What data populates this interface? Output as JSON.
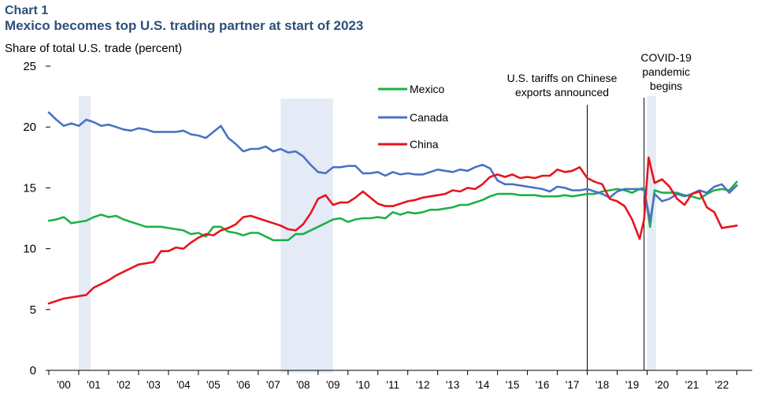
{
  "chart_data": {
    "type": "line",
    "label": "Chart 1",
    "title": "Mexico becomes top U.S. trading partner at start of 2023",
    "ylabel": "Share of total U.S. trade (percent)",
    "xlabel": "",
    "ylim": [
      0,
      25
    ],
    "xlim": [
      2000,
      2023.2
    ],
    "yticks": [
      "0",
      "5",
      "10",
      "15",
      "20",
      "25"
    ],
    "xtick_labels": [
      "'00",
      "'01",
      "'02",
      "'03",
      "'04",
      "'05",
      "'06",
      "'07",
      "'08",
      "'09",
      "'10",
      "'11",
      "'12",
      "'13",
      "'14",
      "'15",
      "'16",
      "'17",
      "'18",
      "'19",
      "'20",
      "'21",
      "'22"
    ],
    "grid": false,
    "colors": {
      "title": "#2e4f7a",
      "recession": "#e4ebf6",
      "mexico": "#1db04b",
      "canada": "#4a72c4",
      "china": "#e8141c"
    },
    "recessions": [
      [
        2001.0,
        2001.4
      ],
      [
        2007.75,
        2009.5
      ],
      [
        2020.0,
        2020.3
      ]
    ],
    "legend": [
      {
        "name": "Mexico",
        "color": "#1db04b"
      },
      {
        "name": "Canada",
        "color": "#4a72c4"
      },
      {
        "name": "China",
        "color": "#e8141c"
      }
    ],
    "annotations": [
      {
        "lines": [
          "U.S. tariffs on Chinese",
          "exports announced"
        ],
        "x": 2018.0
      },
      {
        "lines": [
          "COVID-19",
          "pandemic",
          "begins"
        ],
        "x": 2019.9
      }
    ],
    "series": [
      {
        "name": "Mexico",
        "color": "#1db04b",
        "points": [
          [
            2000.0,
            12.3
          ],
          [
            2000.25,
            12.4
          ],
          [
            2000.5,
            12.6
          ],
          [
            2000.75,
            12.1
          ],
          [
            2001.0,
            12.2
          ],
          [
            2001.25,
            12.3
          ],
          [
            2001.5,
            12.6
          ],
          [
            2001.75,
            12.8
          ],
          [
            2002.0,
            12.6
          ],
          [
            2002.25,
            12.7
          ],
          [
            2002.5,
            12.4
          ],
          [
            2002.75,
            12.2
          ],
          [
            2003.0,
            12.0
          ],
          [
            2003.25,
            11.8
          ],
          [
            2003.5,
            11.8
          ],
          [
            2003.75,
            11.8
          ],
          [
            2004.0,
            11.7
          ],
          [
            2004.25,
            11.6
          ],
          [
            2004.5,
            11.5
          ],
          [
            2004.75,
            11.2
          ],
          [
            2005.0,
            11.3
          ],
          [
            2005.25,
            11.0
          ],
          [
            2005.5,
            11.8
          ],
          [
            2005.75,
            11.8
          ],
          [
            2006.0,
            11.4
          ],
          [
            2006.25,
            11.3
          ],
          [
            2006.5,
            11.1
          ],
          [
            2006.75,
            11.3
          ],
          [
            2007.0,
            11.3
          ],
          [
            2007.25,
            11.0
          ],
          [
            2007.5,
            10.7
          ],
          [
            2007.75,
            10.7
          ],
          [
            2008.0,
            10.7
          ],
          [
            2008.25,
            11.2
          ],
          [
            2008.5,
            11.2
          ],
          [
            2008.75,
            11.5
          ],
          [
            2009.0,
            11.8
          ],
          [
            2009.25,
            12.1
          ],
          [
            2009.5,
            12.4
          ],
          [
            2009.75,
            12.5
          ],
          [
            2010.0,
            12.2
          ],
          [
            2010.25,
            12.4
          ],
          [
            2010.5,
            12.5
          ],
          [
            2010.75,
            12.5
          ],
          [
            2011.0,
            12.6
          ],
          [
            2011.25,
            12.5
          ],
          [
            2011.5,
            13.0
          ],
          [
            2011.75,
            12.8
          ],
          [
            2012.0,
            13.0
          ],
          [
            2012.25,
            12.9
          ],
          [
            2012.5,
            13.0
          ],
          [
            2012.75,
            13.2
          ],
          [
            2013.0,
            13.2
          ],
          [
            2013.25,
            13.3
          ],
          [
            2013.5,
            13.4
          ],
          [
            2013.75,
            13.6
          ],
          [
            2014.0,
            13.6
          ],
          [
            2014.25,
            13.8
          ],
          [
            2014.5,
            14.0
          ],
          [
            2014.75,
            14.3
          ],
          [
            2015.0,
            14.5
          ],
          [
            2015.25,
            14.5
          ],
          [
            2015.5,
            14.5
          ],
          [
            2015.75,
            14.4
          ],
          [
            2016.0,
            14.4
          ],
          [
            2016.25,
            14.4
          ],
          [
            2016.5,
            14.3
          ],
          [
            2016.75,
            14.3
          ],
          [
            2017.0,
            14.3
          ],
          [
            2017.25,
            14.4
          ],
          [
            2017.5,
            14.3
          ],
          [
            2017.75,
            14.4
          ],
          [
            2018.0,
            14.5
          ],
          [
            2018.25,
            14.5
          ],
          [
            2018.5,
            14.7
          ],
          [
            2018.75,
            14.8
          ],
          [
            2019.0,
            14.9
          ],
          [
            2019.25,
            14.8
          ],
          [
            2019.5,
            14.6
          ],
          [
            2019.75,
            14.9
          ],
          [
            2019.9,
            15.0
          ],
          [
            2020.1,
            11.8
          ],
          [
            2020.25,
            14.8
          ],
          [
            2020.5,
            14.6
          ],
          [
            2020.75,
            14.6
          ],
          [
            2021.0,
            14.6
          ],
          [
            2021.25,
            14.4
          ],
          [
            2021.5,
            14.3
          ],
          [
            2021.75,
            14.1
          ],
          [
            2022.0,
            14.5
          ],
          [
            2022.25,
            14.8
          ],
          [
            2022.5,
            14.9
          ],
          [
            2022.75,
            14.8
          ],
          [
            2023.0,
            15.5
          ]
        ]
      },
      {
        "name": "Canada",
        "color": "#4a72c4",
        "points": [
          [
            2000.0,
            21.2
          ],
          [
            2000.25,
            20.6
          ],
          [
            2000.5,
            20.1
          ],
          [
            2000.75,
            20.3
          ],
          [
            2001.0,
            20.1
          ],
          [
            2001.25,
            20.6
          ],
          [
            2001.5,
            20.4
          ],
          [
            2001.75,
            20.1
          ],
          [
            2002.0,
            20.2
          ],
          [
            2002.25,
            20.0
          ],
          [
            2002.5,
            19.8
          ],
          [
            2002.75,
            19.7
          ],
          [
            2003.0,
            19.9
          ],
          [
            2003.25,
            19.8
          ],
          [
            2003.5,
            19.6
          ],
          [
            2003.75,
            19.6
          ],
          [
            2004.0,
            19.6
          ],
          [
            2004.25,
            19.6
          ],
          [
            2004.5,
            19.7
          ],
          [
            2004.75,
            19.4
          ],
          [
            2005.0,
            19.3
          ],
          [
            2005.25,
            19.1
          ],
          [
            2005.5,
            19.6
          ],
          [
            2005.75,
            20.1
          ],
          [
            2006.0,
            19.1
          ],
          [
            2006.25,
            18.6
          ],
          [
            2006.5,
            18.0
          ],
          [
            2006.75,
            18.2
          ],
          [
            2007.0,
            18.2
          ],
          [
            2007.25,
            18.4
          ],
          [
            2007.5,
            18.0
          ],
          [
            2007.75,
            18.2
          ],
          [
            2008.0,
            17.9
          ],
          [
            2008.25,
            18.0
          ],
          [
            2008.5,
            17.6
          ],
          [
            2008.75,
            16.9
          ],
          [
            2009.0,
            16.3
          ],
          [
            2009.25,
            16.2
          ],
          [
            2009.5,
            16.7
          ],
          [
            2009.75,
            16.7
          ],
          [
            2010.0,
            16.8
          ],
          [
            2010.25,
            16.8
          ],
          [
            2010.5,
            16.2
          ],
          [
            2010.75,
            16.2
          ],
          [
            2011.0,
            16.3
          ],
          [
            2011.25,
            16.0
          ],
          [
            2011.5,
            16.3
          ],
          [
            2011.75,
            16.1
          ],
          [
            2012.0,
            16.2
          ],
          [
            2012.25,
            16.1
          ],
          [
            2012.5,
            16.1
          ],
          [
            2012.75,
            16.3
          ],
          [
            2013.0,
            16.5
          ],
          [
            2013.25,
            16.4
          ],
          [
            2013.5,
            16.3
          ],
          [
            2013.75,
            16.5
          ],
          [
            2014.0,
            16.4
          ],
          [
            2014.25,
            16.7
          ],
          [
            2014.5,
            16.9
          ],
          [
            2014.75,
            16.6
          ],
          [
            2015.0,
            15.6
          ],
          [
            2015.25,
            15.3
          ],
          [
            2015.5,
            15.3
          ],
          [
            2015.75,
            15.2
          ],
          [
            2016.0,
            15.1
          ],
          [
            2016.25,
            15.0
          ],
          [
            2016.5,
            14.9
          ],
          [
            2016.75,
            14.7
          ],
          [
            2017.0,
            15.1
          ],
          [
            2017.25,
            15.0
          ],
          [
            2017.5,
            14.8
          ],
          [
            2017.75,
            14.8
          ],
          [
            2018.0,
            14.9
          ],
          [
            2018.25,
            14.7
          ],
          [
            2018.5,
            14.5
          ],
          [
            2018.75,
            14.2
          ],
          [
            2019.0,
            14.7
          ],
          [
            2019.25,
            14.9
          ],
          [
            2019.5,
            14.9
          ],
          [
            2019.75,
            14.9
          ],
          [
            2019.9,
            14.8
          ],
          [
            2020.1,
            12.3
          ],
          [
            2020.25,
            14.5
          ],
          [
            2020.5,
            13.9
          ],
          [
            2020.75,
            14.1
          ],
          [
            2021.0,
            14.5
          ],
          [
            2021.25,
            14.3
          ],
          [
            2021.5,
            14.5
          ],
          [
            2021.75,
            14.8
          ],
          [
            2022.0,
            14.6
          ],
          [
            2022.25,
            15.1
          ],
          [
            2022.5,
            15.3
          ],
          [
            2022.75,
            14.6
          ],
          [
            2023.0,
            15.2
          ]
        ]
      },
      {
        "name": "China",
        "color": "#e8141c",
        "points": [
          [
            2000.0,
            5.5
          ],
          [
            2000.25,
            5.7
          ],
          [
            2000.5,
            5.9
          ],
          [
            2000.75,
            6.0
          ],
          [
            2001.0,
            6.1
          ],
          [
            2001.25,
            6.2
          ],
          [
            2001.5,
            6.8
          ],
          [
            2001.75,
            7.1
          ],
          [
            2002.0,
            7.4
          ],
          [
            2002.25,
            7.8
          ],
          [
            2002.5,
            8.1
          ],
          [
            2002.75,
            8.4
          ],
          [
            2003.0,
            8.7
          ],
          [
            2003.25,
            8.8
          ],
          [
            2003.5,
            8.9
          ],
          [
            2003.75,
            9.8
          ],
          [
            2004.0,
            9.8
          ],
          [
            2004.25,
            10.1
          ],
          [
            2004.5,
            10.0
          ],
          [
            2004.75,
            10.5
          ],
          [
            2005.0,
            10.9
          ],
          [
            2005.25,
            11.2
          ],
          [
            2005.5,
            11.1
          ],
          [
            2005.75,
            11.5
          ],
          [
            2006.0,
            11.7
          ],
          [
            2006.25,
            12.0
          ],
          [
            2006.5,
            12.6
          ],
          [
            2006.75,
            12.7
          ],
          [
            2007.0,
            12.5
          ],
          [
            2007.25,
            12.3
          ],
          [
            2007.5,
            12.1
          ],
          [
            2007.75,
            11.9
          ],
          [
            2008.0,
            11.6
          ],
          [
            2008.25,
            11.5
          ],
          [
            2008.5,
            12.0
          ],
          [
            2008.75,
            12.9
          ],
          [
            2009.0,
            14.1
          ],
          [
            2009.25,
            14.4
          ],
          [
            2009.5,
            13.6
          ],
          [
            2009.75,
            13.8
          ],
          [
            2010.0,
            13.8
          ],
          [
            2010.25,
            14.2
          ],
          [
            2010.5,
            14.7
          ],
          [
            2010.75,
            14.2
          ],
          [
            2011.0,
            13.7
          ],
          [
            2011.25,
            13.5
          ],
          [
            2011.5,
            13.5
          ],
          [
            2011.75,
            13.7
          ],
          [
            2012.0,
            13.9
          ],
          [
            2012.25,
            14.0
          ],
          [
            2012.5,
            14.2
          ],
          [
            2012.75,
            14.3
          ],
          [
            2013.0,
            14.4
          ],
          [
            2013.25,
            14.5
          ],
          [
            2013.5,
            14.8
          ],
          [
            2013.75,
            14.7
          ],
          [
            2014.0,
            15.0
          ],
          [
            2014.25,
            14.9
          ],
          [
            2014.5,
            15.3
          ],
          [
            2014.75,
            15.9
          ],
          [
            2015.0,
            16.1
          ],
          [
            2015.25,
            15.9
          ],
          [
            2015.5,
            16.1
          ],
          [
            2015.75,
            15.8
          ],
          [
            2016.0,
            15.9
          ],
          [
            2016.25,
            15.8
          ],
          [
            2016.5,
            16.0
          ],
          [
            2016.75,
            16.0
          ],
          [
            2017.0,
            16.5
          ],
          [
            2017.25,
            16.3
          ],
          [
            2017.5,
            16.4
          ],
          [
            2017.75,
            16.7
          ],
          [
            2018.0,
            15.8
          ],
          [
            2018.25,
            15.5
          ],
          [
            2018.5,
            15.3
          ],
          [
            2018.75,
            14.1
          ],
          [
            2019.0,
            13.9
          ],
          [
            2019.25,
            13.5
          ],
          [
            2019.5,
            12.4
          ],
          [
            2019.75,
            10.8
          ],
          [
            2019.9,
            12.4
          ],
          [
            2020.05,
            17.5
          ],
          [
            2020.25,
            15.4
          ],
          [
            2020.5,
            15.7
          ],
          [
            2020.75,
            15.1
          ],
          [
            2021.0,
            14.1
          ],
          [
            2021.25,
            13.6
          ],
          [
            2021.5,
            14.5
          ],
          [
            2021.75,
            14.7
          ],
          [
            2022.0,
            13.4
          ],
          [
            2022.25,
            13.0
          ],
          [
            2022.5,
            11.7
          ],
          [
            2022.75,
            11.8
          ],
          [
            2023.0,
            11.9
          ]
        ]
      }
    ]
  }
}
